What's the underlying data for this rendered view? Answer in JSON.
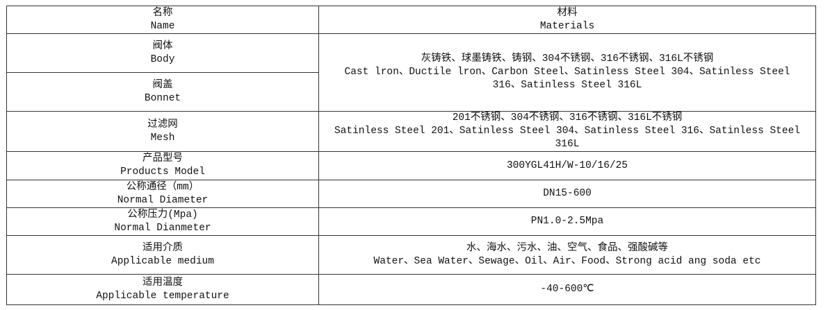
{
  "header": {
    "name_cn": "名称",
    "name_en": "Name",
    "materials_cn": "材料",
    "materials_en": "Materials"
  },
  "rows": [
    {
      "label_cn": "阀体",
      "label_en": "Body",
      "value_cn": "灰铸铁、球墨铸铁、铸钢、304不锈钢、316不锈钢、316L不锈钢",
      "value_en": "Cast lron、Ductile lron、Carbon Steel、Satinless Steel 304、Satinless Steel 316、Satinless Steel 316L",
      "rowspan": 2
    },
    {
      "label_cn": "阀盖",
      "label_en": "Bonnet"
    },
    {
      "label_cn": "过滤网",
      "label_en": "Mesh",
      "value_cn": "201不锈钢、304不锈钢、316不锈钢、316L不锈钢",
      "value_en": "Satinless Steel 201、Satinless Steel 304、Satinless Steel 316、Satinless Steel 316L"
    },
    {
      "label_cn": "产品型号",
      "label_en": "Products Model",
      "value_cn": "300YGL41H/W-10/16/25"
    },
    {
      "label_cn": "公称通径（mm）",
      "label_en": "Normal Diameter",
      "value_cn": "DN15-600"
    },
    {
      "label_cn": "公称压力(Mpa)",
      "label_en": "Normal Dianmeter",
      "value_cn": "PN1.0-2.5Mpa"
    },
    {
      "label_cn": "适用介质",
      "label_en": "Applicable medium",
      "value_cn": "水、海水、污水、油、空气、食品、强酸碱等",
      "value_en": "Water、Sea Water、Sewage、Oil、Air、Food、Strong acid ang soda etc"
    },
    {
      "label_cn": "适用温度",
      "label_en": "Applicable temperature",
      "value_cn": "-40-600℃"
    }
  ]
}
